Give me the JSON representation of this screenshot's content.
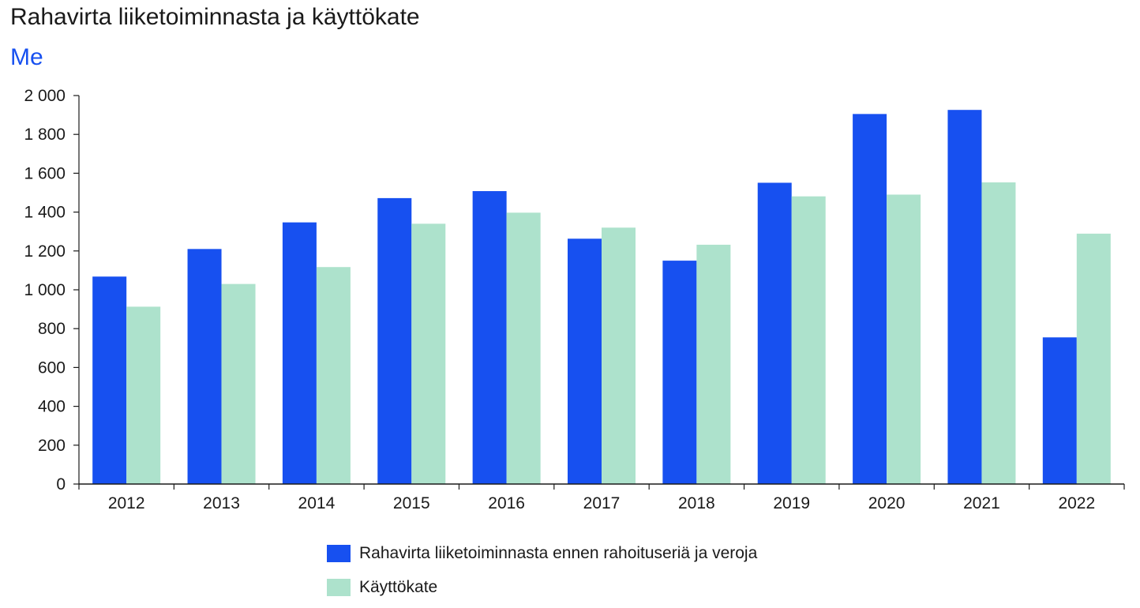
{
  "chart_data": {
    "type": "bar",
    "title": "Rahavirta liiketoiminnasta ja käyttökate",
    "subtitle": "Me",
    "xlabel": "",
    "ylabel": "",
    "categories": [
      "2012",
      "2013",
      "2014",
      "2015",
      "2016",
      "2017",
      "2018",
      "2019",
      "2020",
      "2021",
      "2022"
    ],
    "series": [
      {
        "name": "Rahavirta liiketoiminnasta ennen rahoituseriä ja veroja",
        "color": "#1750f0",
        "values": [
          1068,
          1210,
          1347,
          1472,
          1508,
          1263,
          1150,
          1551,
          1905,
          1926,
          755
        ]
      },
      {
        "name": "Käyttökate",
        "color": "#ade2cc",
        "values": [
          913,
          1030,
          1117,
          1340,
          1397,
          1320,
          1232,
          1481,
          1490,
          1553,
          1289
        ]
      }
    ],
    "ylim": [
      0,
      2000
    ],
    "yticks": [
      0,
      200,
      400,
      600,
      800,
      1000,
      1200,
      1400,
      1600,
      1800,
      2000
    ],
    "ytick_labels": [
      "0",
      "200",
      "400",
      "600",
      "800",
      "1 000",
      "1 200",
      "1 400",
      "1 600",
      "1 800",
      "2 000"
    ],
    "grid": false,
    "legend_position": "bottom"
  }
}
